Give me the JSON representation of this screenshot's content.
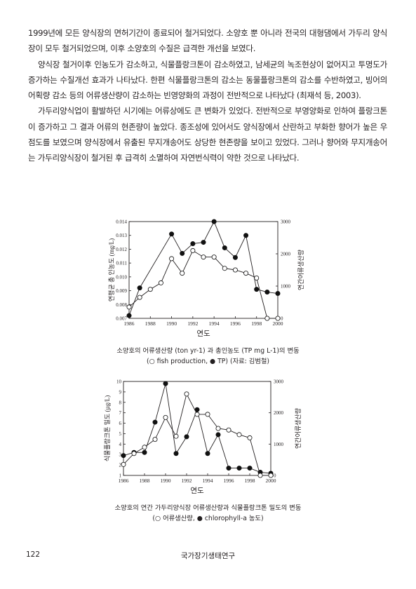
{
  "paragraphs": [
    "1999년에 모든 양식장의 면허기간이 종료되어 철거되었다. 소양호 뿐 아니라 전국의 대형댐에서 가두리 양식장이 모두 철거되었으며, 이후 소양호의 수질은 급격한 개선을 보였다.",
    "양식장 철거이후 인농도가 감소하고, 식물플랑크톤이 감소하였고, 남세균의 녹조현상이 없어지고 투명도가 증가하는 수질개선 효과가 나타났다. 한편 식물플랑크톤의 감소는 동물플랑크톤의 감소를 수반하였고, 빙어의 어획량 감소 등의 어류생산량이 감소하는 빈영양화의 과정이 전반적으로 나타났다 (최재석 등, 2003).",
    "가두리양식업이 활발하던 시기에는 어류상에도 큰 변화가 있었다. 전반적으로 부영양화로 인하여 플랑크톤이 증가하고 그 결과 어류의 현존량이 높았다. 종조성에 있어서도 양식장에서 산란하고 부화한 향어가 높은 우점도를 보였으며 양식장에서 유출된 무지개송어도 상당한 현존량을 보이고 있었다. 그러나 향어와 무지개송어는 가두리양식장이 철거된 후 급격히 소멸하여 자연번식력이 약한 것으로 나타났다."
  ],
  "figure1": {
    "caption_line1": "소양호의 어류생산량 (ton yr-1) 과 총인농도 (TP mg L-1)의 변동",
    "caption_line2": "(○ fish production, ● TP) (자료: 김범철)",
    "xlabel": "연도",
    "ylabel_left": "연평균 총 인농도 (mg/L)",
    "ylabel_right": "연간어류생산량"
  },
  "figure2": {
    "caption_line1": "소양호의 연간 가두리양식장 어류생산량과 식물플랑크톤 밀도의 변동",
    "caption_line2": "(○ 어류생산량, ● chlorophyll-a 농도)",
    "xlabel": "연도",
    "ylabel_left": "식물플랑크톤 밀도 (µg/L)",
    "ylabel_right": "연간어류생산량"
  },
  "chart_data": [
    {
      "type": "line",
      "x": [
        1986,
        1987,
        1988,
        1989,
        1990,
        1991,
        1992,
        1993,
        1994,
        1995,
        1996,
        1997,
        1998,
        1999,
        2000
      ],
      "xlim": [
        1986,
        2000
      ],
      "xticks": [
        "1986",
        "1988",
        "1990",
        "1992",
        "1994",
        "1996",
        "1998",
        "2000"
      ],
      "y_left_lim": [
        0.007,
        0.014
      ],
      "y_left_ticks": [
        "0.007",
        "0.008",
        "0.009",
        "0.010",
        "0.011",
        "0.012",
        "0.013",
        "0.014"
      ],
      "y_right_lim": [
        0,
        3000
      ],
      "y_right_ticks": [
        "0",
        "1000",
        "2000",
        "3000"
      ],
      "xlabel": "연도",
      "ylabel_left": "연평균 총 인농도 (mg/L)",
      "ylabel_right": "연간어류생산량",
      "grid": false,
      "series": [
        {
          "name": "TP",
          "axis": "left",
          "marker": "filled",
          "values": [
            0.0072,
            0.0092,
            null,
            null,
            0.0131,
            0.0117,
            0.0124,
            0.0125,
            0.014,
            0.0121,
            0.0114,
            0.013,
            0.0091,
            0.0089,
            0.0088
          ]
        },
        {
          "name": "fish production",
          "axis": "right",
          "marker": "open",
          "values": [
            350,
            650,
            900,
            1100,
            1850,
            1400,
            2100,
            1900,
            1900,
            1550,
            1500,
            1400,
            1250,
            0,
            0
          ]
        }
      ]
    },
    {
      "type": "line",
      "x": [
        1986,
        1987,
        1988,
        1989,
        1990,
        1991,
        1992,
        1993,
        1994,
        1995,
        1996,
        1997,
        1998,
        1999,
        2000
      ],
      "xlim": [
        1986,
        2000
      ],
      "xticks": [
        "1986",
        "1988",
        "1990",
        "1992",
        "1994",
        "1996",
        "1998",
        "2000"
      ],
      "y_left_lim": [
        1,
        10
      ],
      "y_left_ticks": [
        "1",
        "2",
        "3",
        "4",
        "5",
        "6",
        "7",
        "8",
        "9",
        "10"
      ],
      "y_right_lim": [
        0,
        3000
      ],
      "y_right_ticks": [
        "0",
        "1000",
        "2000",
        "3000"
      ],
      "xlabel": "연도",
      "ylabel_left": "식물플랑크톤 밀도 (µg/L)",
      "ylabel_right": "연간어류생산량",
      "grid": false,
      "series": [
        {
          "name": "chlorophyll-a 농도",
          "axis": "left",
          "marker": "filled",
          "values": [
            2.9,
            3.2,
            3.2,
            6.1,
            9.8,
            3.1,
            4.7,
            7.3,
            3.1,
            4.9,
            1.7,
            1.7,
            1.7,
            1.3,
            1.2
          ]
        },
        {
          "name": "어류생산량",
          "axis": "right",
          "marker": "open",
          "values": [
            350,
            700,
            900,
            1150,
            1850,
            1250,
            2600,
            1950,
            1950,
            1500,
            1450,
            1300,
            1200,
            0,
            0
          ]
        }
      ]
    }
  ],
  "footer": {
    "page_number": "122",
    "title": "국가장기생태연구"
  }
}
